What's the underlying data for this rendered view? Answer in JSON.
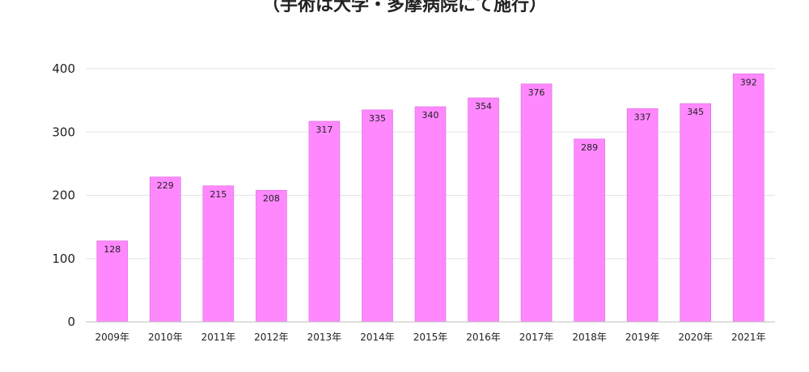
{
  "chart_data": {
    "type": "bar",
    "title": "（手術は大学・多摩病院にて施行）",
    "xlabel": "",
    "ylabel": "",
    "categories": [
      "2009年",
      "2010年",
      "2011年",
      "2012年",
      "2013年",
      "2014年",
      "2015年",
      "2016年",
      "2017年",
      "2018年",
      "2019年",
      "2020年",
      "2021年"
    ],
    "values": [
      128,
      229,
      215,
      208,
      317,
      335,
      340,
      354,
      376,
      289,
      337,
      345,
      392
    ],
    "ylim": [
      0,
      400
    ],
    "yticks": [
      0,
      100,
      200,
      300,
      400
    ],
    "grid": true,
    "legend": "none",
    "bar_color": "#FF88FF",
    "bar_edge_color": "#D86CD8",
    "grid_color": "#E3E3E3"
  }
}
